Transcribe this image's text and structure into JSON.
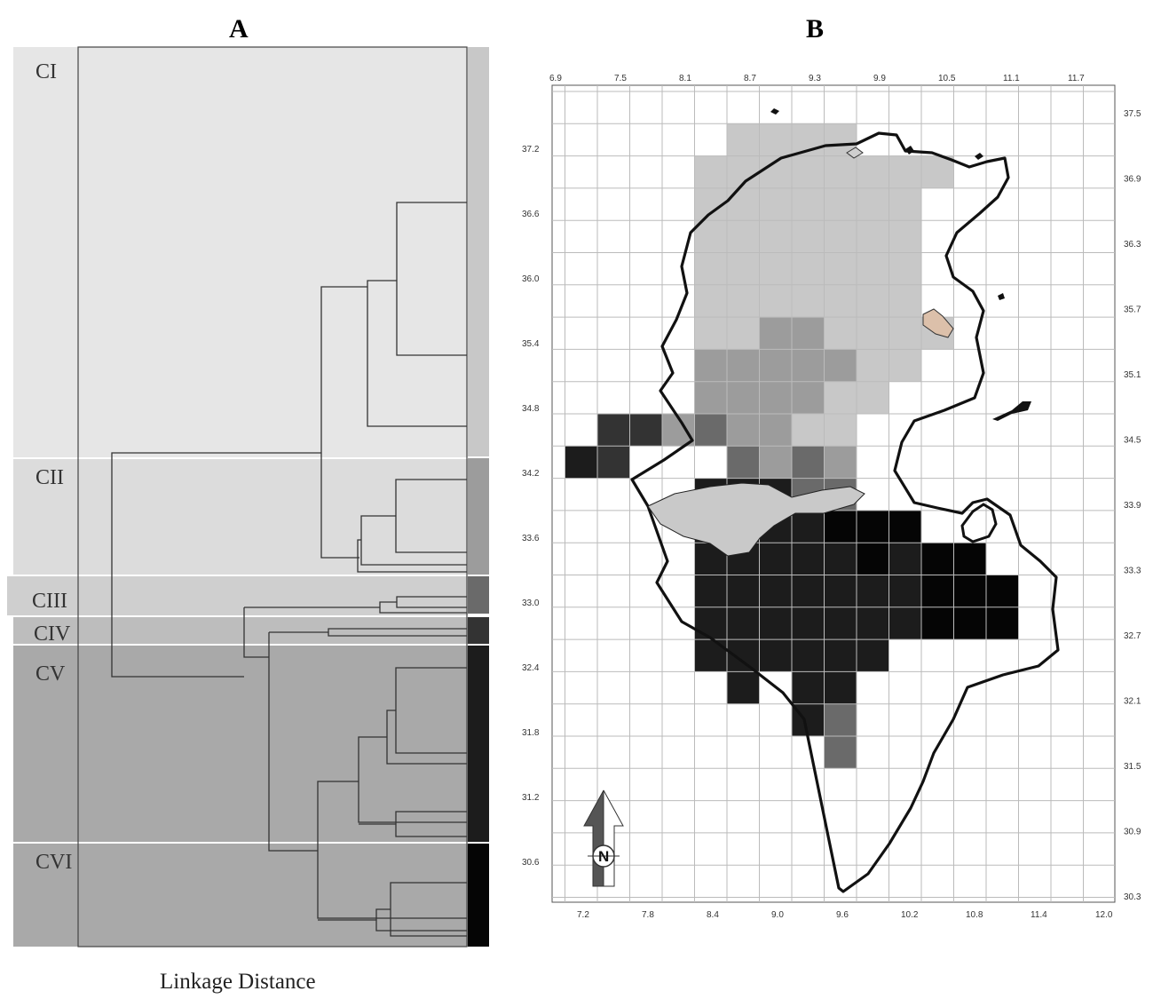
{
  "panels": {
    "a_title": "A",
    "b_title": "B"
  },
  "dendrogram": {
    "xlabel": "Linkage  Distance",
    "clusters": [
      {
        "id": "CI",
        "label": "CI",
        "band_color": "#e6e6e6",
        "bar_color": "#c8c8c8"
      },
      {
        "id": "CII",
        "label": "CII",
        "band_color": "#dcdcdc",
        "bar_color": "#9c9c9c"
      },
      {
        "id": "CIII",
        "label": "CIII",
        "band_color": "#cfcfcf",
        "bar_color": "#6a6a6a"
      },
      {
        "id": "CIV",
        "label": "CIV",
        "band_color": "#bdbdbd",
        "bar_color": "#333333"
      },
      {
        "id": "CV",
        "label": "CV",
        "band_color": "#a9a9a9",
        "bar_color": "#1c1c1c"
      },
      {
        "id": "CVI",
        "label": "CVI",
        "band_color": "#a9a9a9",
        "bar_color": "#050505"
      }
    ]
  },
  "map": {
    "lon_ticks_top": [
      "6.9",
      "7.5",
      "8.1",
      "8.7",
      "9.3",
      "9.9",
      "10.5",
      "11.1",
      "11.7"
    ],
    "lon_ticks_bottom": [
      "7.2",
      "7.8",
      "8.4",
      "9.0",
      "9.6",
      "10.2",
      "10.8",
      "11.4",
      "12.0"
    ],
    "lat_ticks_left": [
      "37.2",
      "36.6",
      "36.0",
      "35.4",
      "34.8",
      "34.2",
      "33.6",
      "33.0",
      "32.4",
      "31.8",
      "31.2",
      "30.6"
    ],
    "lat_ticks_right": [
      "37.5",
      "36.9",
      "36.3",
      "35.7",
      "35.1",
      "34.5",
      "33.9",
      "33.3",
      "32.7",
      "32.1",
      "31.5",
      "30.9",
      "30.3"
    ],
    "north_arrow_label": "N",
    "cell_colors": {
      "CI": "#c8c8c8",
      "CII": "#9c9c9c",
      "CIII": "#6a6a6a",
      "CIV": "#333333",
      "CV": "#1c1c1c",
      "CVI": "#050505"
    },
    "cells": [
      {
        "col": 3,
        "row": 2,
        "c": "CI"
      },
      {
        "col": 4,
        "row": 1,
        "c": "CI"
      },
      {
        "col": 5,
        "row": 1,
        "c": "CI"
      },
      {
        "col": 6,
        "row": 1,
        "c": "CI"
      },
      {
        "col": 7,
        "row": 1,
        "c": "CI"
      },
      {
        "col": 3,
        "row": 3,
        "c": "CI"
      },
      {
        "col": 4,
        "row": 2,
        "c": "CI"
      },
      {
        "col": 5,
        "row": 2,
        "c": "CI"
      },
      {
        "col": 6,
        "row": 2,
        "c": "CI"
      },
      {
        "col": 7,
        "row": 2,
        "c": "CI"
      },
      {
        "col": 8,
        "row": 2,
        "c": "CI"
      },
      {
        "col": 9,
        "row": 2,
        "c": "CI"
      },
      {
        "col": 10,
        "row": 2,
        "c": "CI"
      },
      {
        "col": 3,
        "row": 4,
        "c": "CI"
      },
      {
        "col": 4,
        "row": 3,
        "c": "CI"
      },
      {
        "col": 5,
        "row": 3,
        "c": "CI"
      },
      {
        "col": 6,
        "row": 3,
        "c": "CI"
      },
      {
        "col": 7,
        "row": 3,
        "c": "CI"
      },
      {
        "col": 8,
        "row": 3,
        "c": "CI"
      },
      {
        "col": 9,
        "row": 3,
        "c": "CI"
      },
      {
        "col": 4,
        "row": 4,
        "c": "CI"
      },
      {
        "col": 5,
        "row": 4,
        "c": "CI"
      },
      {
        "col": 6,
        "row": 4,
        "c": "CI"
      },
      {
        "col": 7,
        "row": 4,
        "c": "CI"
      },
      {
        "col": 8,
        "row": 4,
        "c": "CI"
      },
      {
        "col": 9,
        "row": 4,
        "c": "CI"
      },
      {
        "col": 3,
        "row": 5,
        "c": "CI"
      },
      {
        "col": 4,
        "row": 5,
        "c": "CI"
      },
      {
        "col": 5,
        "row": 5,
        "c": "CI"
      },
      {
        "col": 6,
        "row": 5,
        "c": "CI"
      },
      {
        "col": 7,
        "row": 5,
        "c": "CI"
      },
      {
        "col": 8,
        "row": 5,
        "c": "CI"
      },
      {
        "col": 9,
        "row": 5,
        "c": "CI"
      },
      {
        "col": 3,
        "row": 6,
        "c": "CI"
      },
      {
        "col": 4,
        "row": 6,
        "c": "CI"
      },
      {
        "col": 5,
        "row": 6,
        "c": "CI"
      },
      {
        "col": 6,
        "row": 6,
        "c": "CI"
      },
      {
        "col": 7,
        "row": 6,
        "c": "CI"
      },
      {
        "col": 8,
        "row": 6,
        "c": "CI"
      },
      {
        "col": 9,
        "row": 6,
        "c": "CI"
      },
      {
        "col": 3,
        "row": 7,
        "c": "CI"
      },
      {
        "col": 4,
        "row": 7,
        "c": "CI"
      },
      {
        "col": 5,
        "row": 7,
        "c": "CII"
      },
      {
        "col": 6,
        "row": 7,
        "c": "CII"
      },
      {
        "col": 7,
        "row": 7,
        "c": "CI"
      },
      {
        "col": 8,
        "row": 7,
        "c": "CI"
      },
      {
        "col": 9,
        "row": 7,
        "c": "CI"
      },
      {
        "col": 10,
        "row": 7,
        "c": "CI"
      },
      {
        "col": 3,
        "row": 8,
        "c": "CII"
      },
      {
        "col": 4,
        "row": 8,
        "c": "CII"
      },
      {
        "col": 5,
        "row": 8,
        "c": "CII"
      },
      {
        "col": 6,
        "row": 8,
        "c": "CII"
      },
      {
        "col": 7,
        "row": 8,
        "c": "CII"
      },
      {
        "col": 8,
        "row": 8,
        "c": "CI"
      },
      {
        "col": 9,
        "row": 8,
        "c": "CI"
      },
      {
        "col": 3,
        "row": 9,
        "c": "CII"
      },
      {
        "col": 4,
        "row": 9,
        "c": "CII"
      },
      {
        "col": 5,
        "row": 9,
        "c": "CII"
      },
      {
        "col": 6,
        "row": 9,
        "c": "CII"
      },
      {
        "col": 7,
        "row": 9,
        "c": "CI"
      },
      {
        "col": 8,
        "row": 9,
        "c": "CI"
      },
      {
        "col": 0,
        "row": 10,
        "c": "CIV"
      },
      {
        "col": 1,
        "row": 10,
        "c": "CIV"
      },
      {
        "col": 2,
        "row": 10,
        "c": "CII"
      },
      {
        "col": 3,
        "row": 10,
        "c": "CIII"
      },
      {
        "col": 4,
        "row": 10,
        "c": "CII"
      },
      {
        "col": 5,
        "row": 10,
        "c": "CII"
      },
      {
        "col": 6,
        "row": 10,
        "c": "CI"
      },
      {
        "col": 7,
        "row": 10,
        "c": "CI"
      },
      {
        "col": -1,
        "row": 11,
        "c": "CV"
      },
      {
        "col": 0,
        "row": 11,
        "c": "CIV"
      },
      {
        "col": 4,
        "row": 11,
        "c": "CIII"
      },
      {
        "col": 5,
        "row": 11,
        "c": "CII"
      },
      {
        "col": 6,
        "row": 11,
        "c": "CIII"
      },
      {
        "col": 7,
        "row": 11,
        "c": "CII"
      },
      {
        "col": 3,
        "row": 12,
        "c": "CV"
      },
      {
        "col": 4,
        "row": 12,
        "c": "CV"
      },
      {
        "col": 5,
        "row": 12,
        "c": "CV"
      },
      {
        "col": 6,
        "row": 12,
        "c": "CIII"
      },
      {
        "col": 7,
        "row": 12,
        "c": "CIII"
      },
      {
        "col": 3,
        "row": 13,
        "c": "CV"
      },
      {
        "col": 4,
        "row": 13,
        "c": "CV"
      },
      {
        "col": 5,
        "row": 13,
        "c": "CV"
      },
      {
        "col": 6,
        "row": 13,
        "c": "CV"
      },
      {
        "col": 7,
        "row": 13,
        "c": "CVI"
      },
      {
        "col": 8,
        "row": 13,
        "c": "CVI"
      },
      {
        "col": 9,
        "row": 13,
        "c": "CVI"
      },
      {
        "col": 3,
        "row": 14,
        "c": "CV"
      },
      {
        "col": 4,
        "row": 14,
        "c": "CV"
      },
      {
        "col": 5,
        "row": 14,
        "c": "CV"
      },
      {
        "col": 6,
        "row": 14,
        "c": "CV"
      },
      {
        "col": 7,
        "row": 14,
        "c": "CV"
      },
      {
        "col": 8,
        "row": 14,
        "c": "CVI"
      },
      {
        "col": 9,
        "row": 14,
        "c": "CV"
      },
      {
        "col": 10,
        "row": 14,
        "c": "CVI"
      },
      {
        "col": 11,
        "row": 14,
        "c": "CVI"
      },
      {
        "col": 3,
        "row": 15,
        "c": "CV"
      },
      {
        "col": 4,
        "row": 15,
        "c": "CV"
      },
      {
        "col": 5,
        "row": 15,
        "c": "CV"
      },
      {
        "col": 6,
        "row": 15,
        "c": "CV"
      },
      {
        "col": 7,
        "row": 15,
        "c": "CV"
      },
      {
        "col": 8,
        "row": 15,
        "c": "CV"
      },
      {
        "col": 9,
        "row": 15,
        "c": "CV"
      },
      {
        "col": 10,
        "row": 15,
        "c": "CVI"
      },
      {
        "col": 11,
        "row": 15,
        "c": "CVI"
      },
      {
        "col": 12,
        "row": 15,
        "c": "CVI"
      },
      {
        "col": 3,
        "row": 16,
        "c": "CV"
      },
      {
        "col": 4,
        "row": 16,
        "c": "CV"
      },
      {
        "col": 5,
        "row": 16,
        "c": "CV"
      },
      {
        "col": 6,
        "row": 16,
        "c": "CV"
      },
      {
        "col": 7,
        "row": 16,
        "c": "CV"
      },
      {
        "col": 8,
        "row": 16,
        "c": "CV"
      },
      {
        "col": 9,
        "row": 16,
        "c": "CV"
      },
      {
        "col": 10,
        "row": 16,
        "c": "CVI"
      },
      {
        "col": 11,
        "row": 16,
        "c": "CVI"
      },
      {
        "col": 12,
        "row": 16,
        "c": "CVI"
      },
      {
        "col": 3,
        "row": 17,
        "c": "CV"
      },
      {
        "col": 4,
        "row": 17,
        "c": "CV"
      },
      {
        "col": 5,
        "row": 17,
        "c": "CV"
      },
      {
        "col": 6,
        "row": 17,
        "c": "CV"
      },
      {
        "col": 7,
        "row": 17,
        "c": "CV"
      },
      {
        "col": 8,
        "row": 17,
        "c": "CV"
      },
      {
        "col": 4,
        "row": 18,
        "c": "CV"
      },
      {
        "col": 6,
        "row": 18,
        "c": "CV"
      },
      {
        "col": 7,
        "row": 18,
        "c": "CV"
      },
      {
        "col": 6,
        "row": 19,
        "c": "CV"
      },
      {
        "col": 7,
        "row": 19,
        "c": "CIII"
      },
      {
        "col": 7,
        "row": 20,
        "c": "CIII"
      }
    ]
  }
}
